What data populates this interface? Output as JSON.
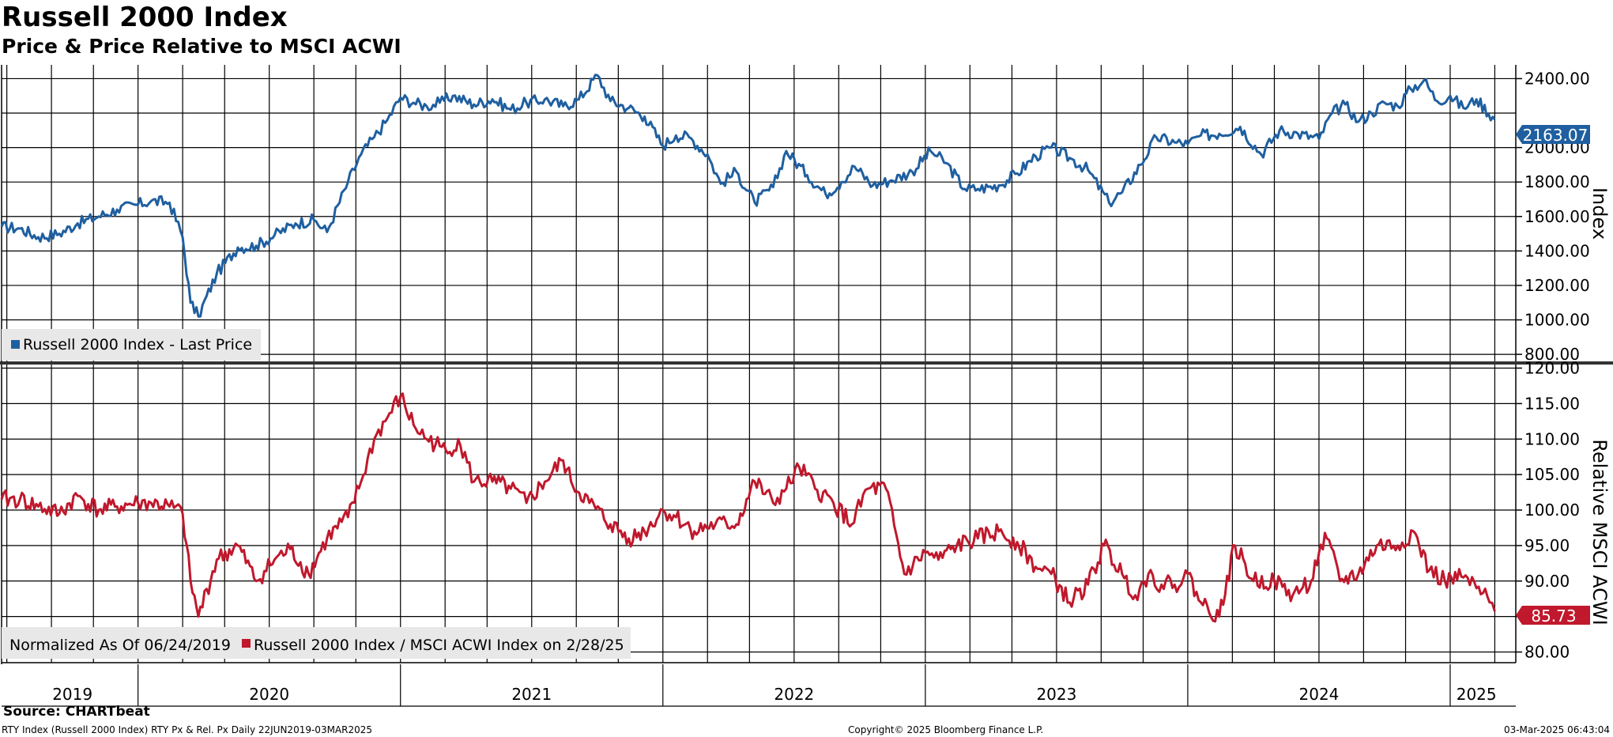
{
  "chart_data": [
    {
      "type": "line",
      "title": "Russell 2000 Index",
      "subtitle": "Price & Price Relative to MSCI ACWI",
      "ylabel": "Index",
      "ylim": [
        750,
        2480
      ],
      "yticks": [
        800,
        1000,
        1200,
        1400,
        1600,
        1800,
        2000,
        2400
      ],
      "ytick_labels": [
        "800.00",
        "1000.00",
        "1200.00",
        "1400.00",
        "1600.00",
        "1800.00",
        "2000.00",
        "2400.00"
      ],
      "grid": true,
      "legend": "bottom-left",
      "last_value": 2163.07,
      "last_value_label": "2163.07",
      "color": "#1f5fa0",
      "series": [
        {
          "name": "Russell 2000 Index - Last Price",
          "x": [
            2019.48,
            2019.55,
            2019.62,
            2019.7,
            2019.77,
            2019.85,
            2019.92,
            2020.0,
            2020.05,
            2020.12,
            2020.17,
            2020.2,
            2020.23,
            2020.3,
            2020.38,
            2020.45,
            2020.52,
            2020.6,
            2020.67,
            2020.72,
            2020.8,
            2020.85,
            2020.9,
            2020.95,
            2021.0,
            2021.05,
            2021.1,
            2021.15,
            2021.2,
            2021.28,
            2021.35,
            2021.42,
            2021.48,
            2021.55,
            2021.62,
            2021.68,
            2021.75,
            2021.8,
            2021.87,
            2021.93,
            2022.0,
            2022.05,
            2022.1,
            2022.17,
            2022.22,
            2022.28,
            2022.35,
            2022.42,
            2022.47,
            2022.55,
            2022.62,
            2022.68,
            2022.73,
            2022.8,
            2022.87,
            2022.95,
            2023.02,
            2023.08,
            2023.15,
            2023.2,
            2023.28,
            2023.35,
            2023.42,
            2023.48,
            2023.55,
            2023.62,
            2023.7,
            2023.75,
            2023.82,
            2023.88,
            2023.95,
            2024.0,
            2024.05,
            2024.12,
            2024.2,
            2024.28,
            2024.35,
            2024.42,
            2024.5,
            2024.55,
            2024.6,
            2024.65,
            2024.7,
            2024.75,
            2024.8,
            2024.85,
            2024.9,
            2024.95,
            2025.0,
            2025.05,
            2025.1,
            2025.17
          ],
          "values": [
            1540,
            1530,
            1480,
            1500,
            1560,
            1600,
            1640,
            1670,
            1690,
            1680,
            1480,
            1100,
            1020,
            1270,
            1420,
            1430,
            1490,
            1560,
            1580,
            1510,
            1800,
            1960,
            2060,
            2160,
            2290,
            2260,
            2240,
            2260,
            2300,
            2250,
            2280,
            2220,
            2260,
            2280,
            2240,
            2280,
            2420,
            2270,
            2230,
            2180,
            2010,
            2070,
            2060,
            1960,
            1790,
            1860,
            1680,
            1770,
            1980,
            1840,
            1730,
            1800,
            1890,
            1780,
            1810,
            1860,
            1980,
            1910,
            1760,
            1760,
            1780,
            1850,
            1950,
            2000,
            1940,
            1870,
            1680,
            1740,
            1900,
            2060,
            2030,
            2020,
            2070,
            2080,
            2120,
            1960,
            2100,
            2080,
            2050,
            2200,
            2250,
            2150,
            2200,
            2260,
            2240,
            2340,
            2390,
            2270,
            2300,
            2230,
            2280,
            2163
          ]
        }
      ]
    },
    {
      "type": "line",
      "ylabel": "Relative MSCI ACWI",
      "ylim": [
        78.5,
        120.5
      ],
      "yticks": [
        80,
        85,
        90,
        95,
        100,
        105,
        110,
        115,
        120
      ],
      "ytick_labels": [
        "80.00",
        "85.00",
        "90.00",
        "95.00",
        "100.00",
        "105.00",
        "110.00",
        "115.00",
        "120.00"
      ],
      "grid": true,
      "legend": "bottom-left",
      "legend_prefix": "Normalized As Of 06/24/2019",
      "last_value": 85.73,
      "last_value_label": "85.73",
      "color": "#c0182c",
      "series": [
        {
          "name": "Russell 2000 Index / MSCI ACWI Index on 2/28/25",
          "x": [
            2019.48,
            2019.55,
            2019.62,
            2019.7,
            2019.77,
            2019.85,
            2019.92,
            2020.0,
            2020.05,
            2020.12,
            2020.17,
            2020.2,
            2020.23,
            2020.3,
            2020.38,
            2020.45,
            2020.52,
            2020.58,
            2020.65,
            2020.72,
            2020.8,
            2020.85,
            2020.9,
            2020.95,
            2021.0,
            2021.05,
            2021.1,
            2021.15,
            2021.18,
            2021.22,
            2021.28,
            2021.35,
            2021.42,
            2021.48,
            2021.55,
            2021.62,
            2021.65,
            2021.72,
            2021.8,
            2021.87,
            2021.93,
            2022.0,
            2022.05,
            2022.12,
            2022.2,
            2022.28,
            2022.35,
            2022.42,
            2022.47,
            2022.52,
            2022.58,
            2022.65,
            2022.72,
            2022.78,
            2022.85,
            2022.92,
            2023.0,
            2023.05,
            2023.12,
            2023.2,
            2023.28,
            2023.35,
            2023.42,
            2023.48,
            2023.55,
            2023.62,
            2023.68,
            2023.75,
            2023.8,
            2023.85,
            2023.9,
            2023.95,
            2024.0,
            2024.05,
            2024.12,
            2024.18,
            2024.25,
            2024.33,
            2024.4,
            2024.47,
            2024.5,
            2024.53,
            2024.58,
            2024.65,
            2024.72,
            2024.8,
            2024.86,
            2024.92,
            2024.98,
            2025.05,
            2025.1,
            2025.15,
            2025.17
          ],
          "values": [
            101.5,
            101.5,
            100.5,
            99.5,
            102,
            100,
            100.5,
            101,
            101,
            100.5,
            99.5,
            90,
            85,
            93,
            95,
            90,
            93,
            94.5,
            91,
            96,
            99,
            104,
            110,
            113,
            116,
            112,
            110,
            109,
            108,
            110,
            104,
            104,
            103,
            101,
            104,
            107,
            104,
            101,
            98,
            96,
            97,
            100,
            99,
            97,
            98,
            98,
            104,
            101,
            103,
            106,
            103,
            101,
            98,
            103,
            103,
            91,
            94,
            93,
            95,
            96,
            97,
            95.5,
            92,
            91,
            87,
            89.5,
            95,
            91,
            88,
            91,
            89.5,
            89.5,
            91,
            87,
            85,
            95,
            90,
            90,
            88,
            90,
            94,
            96,
            90,
            91,
            95,
            95,
            97,
            91.5,
            90,
            90.5,
            89,
            87,
            85.73
          ]
        }
      ]
    },
    {
      "type": "line",
      "role": "shared-x-axis",
      "xlim": [
        2019.48,
        2025.25
      ],
      "x_label_positions": [
        2019.75,
        2020.5,
        2021.5,
        2022.5,
        2023.5,
        2024.5,
        2025.1
      ],
      "x_labels": [
        "2019",
        "2020",
        "2021",
        "2022",
        "2023",
        "2024",
        "2025"
      ],
      "year_boundaries": [
        2020.0,
        2021.0,
        2022.0,
        2023.0,
        2024.0,
        2025.0
      ],
      "month_gridlines": [
        2019.5,
        2019.67,
        2019.83,
        2020.0,
        2020.17,
        2020.33,
        2020.5,
        2020.67,
        2020.83,
        2021.0,
        2021.17,
        2021.33,
        2021.5,
        2021.67,
        2021.83,
        2022.0,
        2022.17,
        2022.33,
        2022.5,
        2022.67,
        2022.83,
        2023.0,
        2023.17,
        2023.33,
        2023.5,
        2023.67,
        2023.83,
        2024.0,
        2024.17,
        2024.33,
        2024.5,
        2024.67,
        2024.83,
        2025.0,
        2025.17
      ]
    }
  ],
  "source": "Source: CHARTbeat",
  "footer": {
    "left": "RTY Index (Russell 2000 Index) RTY Px & Rel. Px  Daily 22JUN2019-03MAR2025",
    "center": "Copyright© 2025 Bloomberg Finance L.P.",
    "right": "03-Mar-2025 06:43:04"
  },
  "colors": {
    "price": "#1f5fa0",
    "relative": "#c0182c",
    "grid": "#000000"
  }
}
